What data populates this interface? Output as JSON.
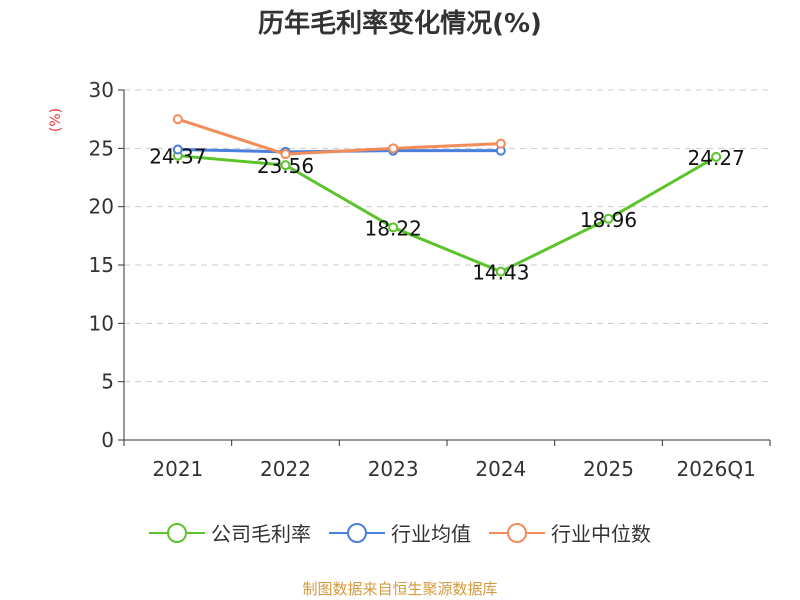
{
  "chart_data": {
    "type": "line",
    "title": "历年毛利率变化情况(%)",
    "ylabel": "(%)",
    "categories": [
      "2021",
      "2022",
      "2023",
      "2024",
      "2025",
      "2026Q1"
    ],
    "ylim": [
      0,
      30
    ],
    "yticks": [
      0,
      5,
      10,
      15,
      20,
      25,
      30
    ],
    "grid": true,
    "legend_position": "bottom",
    "series": [
      {
        "name": "公司毛利率",
        "color": "#5bc42b",
        "values": [
          24.37,
          23.56,
          18.22,
          14.43,
          18.96,
          24.27
        ],
        "labels": [
          "24.37",
          "23.56",
          "18.22",
          "14.43",
          "18.96",
          "24.27"
        ]
      },
      {
        "name": "行业均值",
        "color": "#4a7fdc",
        "values": [
          24.9,
          24.7,
          24.8,
          24.8,
          null,
          null
        ]
      },
      {
        "name": "行业中位数",
        "color": "#f28c5a",
        "values": [
          27.5,
          24.5,
          25.0,
          25.4,
          null,
          null
        ]
      }
    ]
  },
  "source": "制图数据来自恒生聚源数据库"
}
